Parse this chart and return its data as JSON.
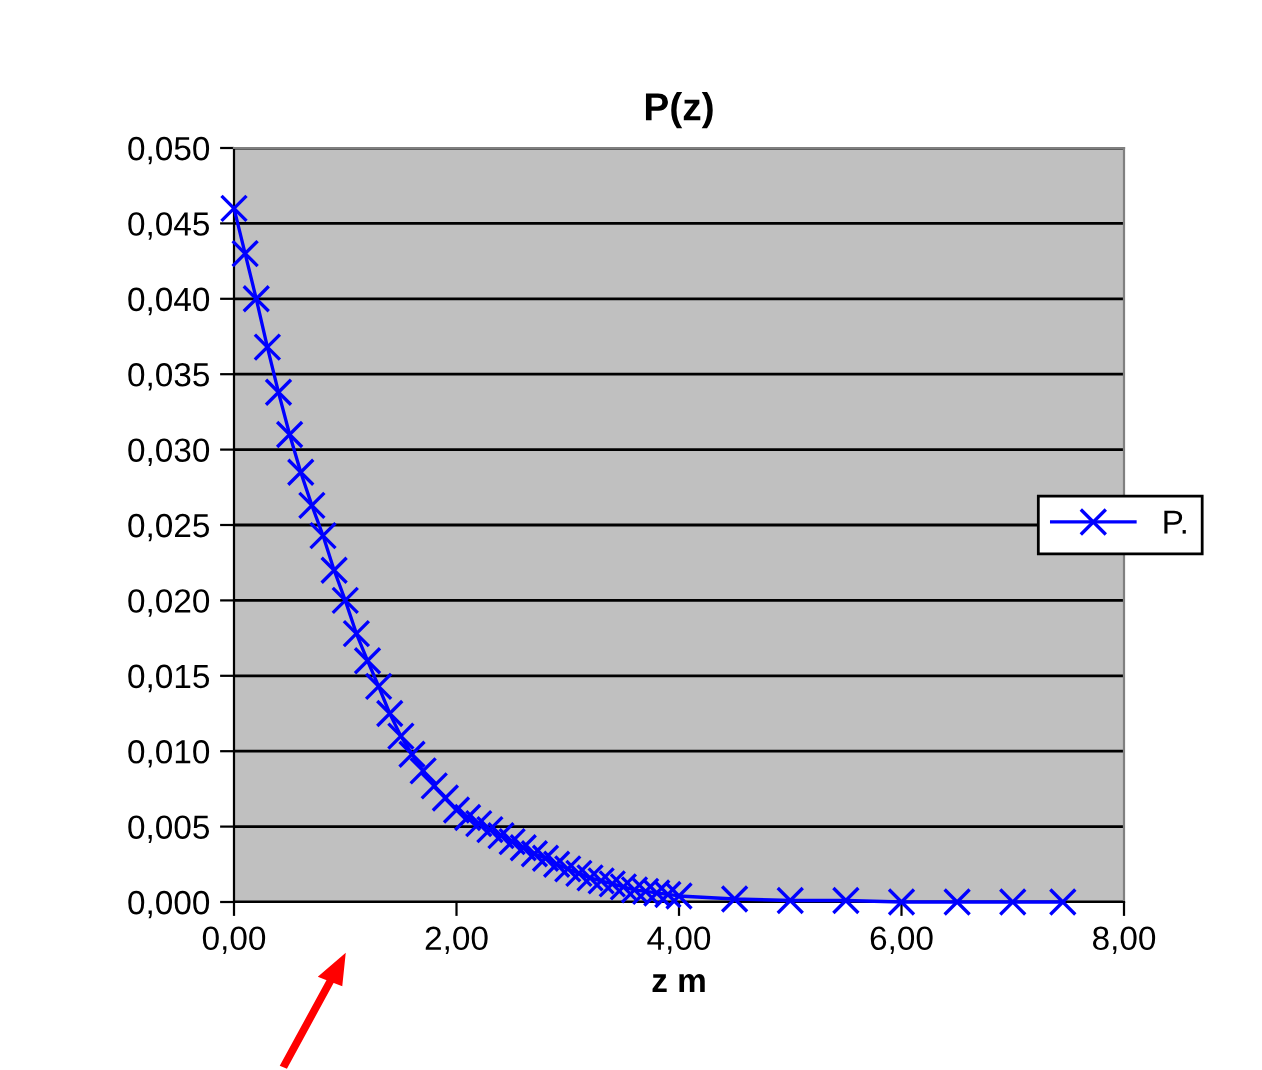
{
  "chart_data": {
    "type": "line",
    "title": "P(z)",
    "xlabel": "z m",
    "x": [
      0,
      0.1,
      0.2,
      0.3,
      0.4,
      0.5,
      0.6,
      0.7,
      0.8,
      0.9,
      1.0,
      1.1,
      1.2,
      1.3,
      1.4,
      1.5,
      1.6,
      1.7,
      1.8,
      1.9,
      2.0,
      2.1,
      2.2,
      2.3,
      2.4,
      2.5,
      2.6,
      2.7,
      2.8,
      2.9,
      3.0,
      3.1,
      3.2,
      3.3,
      3.4,
      3.5,
      3.6,
      3.7,
      3.8,
      3.9,
      4.0,
      4.5,
      5.0,
      5.5,
      6.0,
      6.5,
      7.0,
      7.45
    ],
    "series": [
      {
        "name": "P.",
        "color": "#0000ff",
        "values": [
          0.046,
          0.043,
          0.04,
          0.0368,
          0.0338,
          0.031,
          0.0285,
          0.0263,
          0.0243,
          0.022,
          0.02,
          0.0178,
          0.016,
          0.0143,
          0.0125,
          0.011,
          0.0098,
          0.0087,
          0.0077,
          0.0069,
          0.0061,
          0.0056,
          0.0052,
          0.0048,
          0.0044,
          0.004,
          0.0036,
          0.0032,
          0.0029,
          0.0025,
          0.0022,
          0.0019,
          0.0016,
          0.0014,
          0.0012,
          0.001,
          0.0008,
          0.0007,
          0.0006,
          0.0005,
          0.0004,
          0.0002,
          0.0001,
          0.0001,
          0,
          0,
          0,
          0
        ]
      }
    ],
    "xlim": [
      0,
      8
    ],
    "ylim": [
      0,
      0.05
    ],
    "xticks": [
      {
        "value": 0,
        "label": "0,00"
      },
      {
        "value": 2,
        "label": "2,00"
      },
      {
        "value": 4,
        "label": "4,00"
      },
      {
        "value": 6,
        "label": "6,00"
      },
      {
        "value": 8,
        "label": "8,00"
      }
    ],
    "yticks": [
      {
        "value": 0,
        "label": "0,000"
      },
      {
        "value": 0.005,
        "label": "0,005"
      },
      {
        "value": 0.01,
        "label": "0,010"
      },
      {
        "value": 0.015,
        "label": "0,015"
      },
      {
        "value": 0.02,
        "label": "0,020"
      },
      {
        "value": 0.025,
        "label": "0,025"
      },
      {
        "value": 0.03,
        "label": "0,030"
      },
      {
        "value": 0.035,
        "label": "0,035"
      },
      {
        "value": 0.04,
        "label": "0,040"
      },
      {
        "value": 0.045,
        "label": "0,045"
      },
      {
        "value": 0.05,
        "label": "0,050"
      }
    ],
    "grid": "y",
    "legend": "right",
    "marker": "cross",
    "line_style": "solid"
  }
}
